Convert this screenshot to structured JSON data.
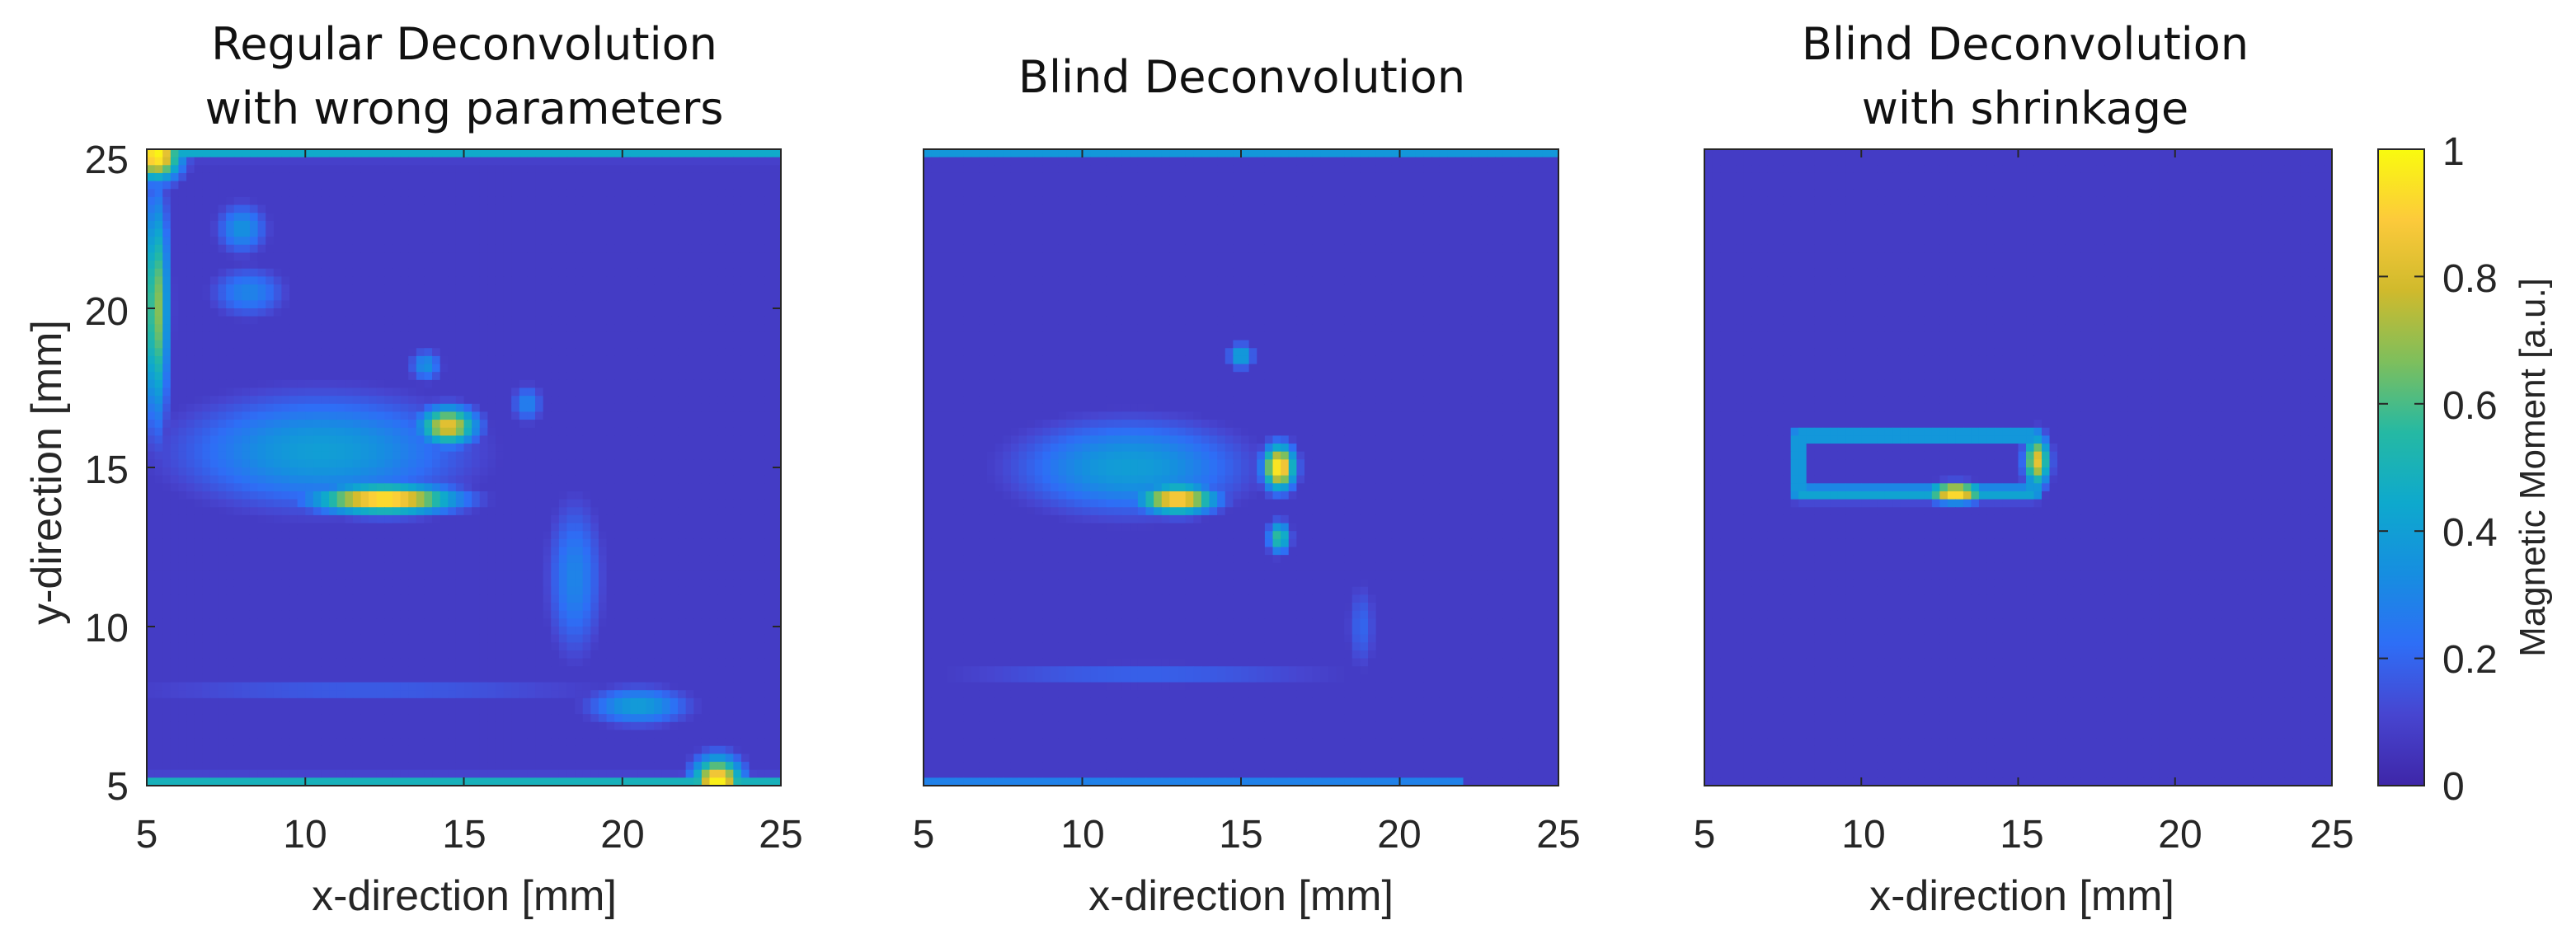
{
  "chart_data": [
    {
      "type": "heatmap",
      "title": [
        "Regular Deconvolution",
        "with wrong parameters"
      ],
      "xlabel": "x-direction [mm]",
      "ylabel": "y-direction [mm]",
      "xlim": [
        5,
        25
      ],
      "ylim": [
        5,
        25
      ],
      "xticks": [
        "5",
        "10",
        "15",
        "20",
        "25"
      ],
      "yticks": [
        "5",
        "10",
        "15",
        "20",
        "25"
      ],
      "background_value": 0.08,
      "features": [
        {
          "kind": "blob",
          "x": 12.5,
          "y": 14.0,
          "rx": 2.2,
          "ry": 0.45,
          "value": 1.0
        },
        {
          "kind": "blob",
          "x": 14.5,
          "y": 16.3,
          "rx": 0.9,
          "ry": 0.6,
          "value": 0.85
        },
        {
          "kind": "blob",
          "x": 10.5,
          "y": 15.5,
          "rx": 4.5,
          "ry": 1.8,
          "value": 0.4
        },
        {
          "kind": "blob",
          "x": 8.0,
          "y": 22.5,
          "rx": 0.8,
          "ry": 0.8,
          "value": 0.35
        },
        {
          "kind": "blob",
          "x": 8.2,
          "y": 20.5,
          "rx": 1.2,
          "ry": 0.8,
          "value": 0.3
        },
        {
          "kind": "blob",
          "x": 13.8,
          "y": 18.2,
          "rx": 0.5,
          "ry": 0.5,
          "value": 0.35
        },
        {
          "kind": "blob",
          "x": 17.0,
          "y": 17.0,
          "rx": 0.5,
          "ry": 0.6,
          "value": 0.3
        },
        {
          "kind": "blob",
          "x": 18.5,
          "y": 11.5,
          "rx": 0.9,
          "ry": 2.5,
          "value": 0.3
        },
        {
          "kind": "blob",
          "x": 20.5,
          "y": 7.5,
          "rx": 1.6,
          "ry": 0.6,
          "value": 0.4
        },
        {
          "kind": "blob",
          "x": 12.0,
          "y": 8.0,
          "rx": 9.0,
          "ry": 0.3,
          "value": 0.2
        },
        {
          "kind": "blob",
          "x": 5.3,
          "y": 20.0,
          "rx": 0.4,
          "ry": 3.5,
          "value": 0.7
        },
        {
          "kind": "edge",
          "side": "top",
          "from": 5,
          "to": 25,
          "value": 0.55
        },
        {
          "kind": "edge",
          "side": "bottom",
          "from": 5,
          "to": 25,
          "value": 0.6
        },
        {
          "kind": "corner",
          "x": 5.3,
          "y": 24.8,
          "value": 1.0
        },
        {
          "kind": "corner",
          "x": 23.0,
          "y": 5.1,
          "value": 1.0
        }
      ]
    },
    {
      "type": "heatmap",
      "title": [
        "Blind Deconvolution"
      ],
      "xlabel": "x-direction [mm]",
      "ylabel": "",
      "xlim": [
        5,
        25
      ],
      "ylim": [
        5,
        25
      ],
      "xticks": [
        "5",
        "10",
        "15",
        "20",
        "25"
      ],
      "yticks": [],
      "background_value": 0.08,
      "features": [
        {
          "kind": "blob",
          "x": 13.0,
          "y": 14.0,
          "rx": 1.2,
          "ry": 0.45,
          "value": 0.95
        },
        {
          "kind": "blob",
          "x": 16.2,
          "y": 15.0,
          "rx": 0.5,
          "ry": 0.7,
          "value": 1.0
        },
        {
          "kind": "blob",
          "x": 11.5,
          "y": 15.0,
          "rx": 3.6,
          "ry": 1.5,
          "value": 0.4
        },
        {
          "kind": "blob",
          "x": 15.0,
          "y": 18.5,
          "rx": 0.4,
          "ry": 0.4,
          "value": 0.45
        },
        {
          "kind": "blob",
          "x": 16.2,
          "y": 12.8,
          "rx": 0.35,
          "ry": 0.5,
          "value": 0.6
        },
        {
          "kind": "blob",
          "x": 12.0,
          "y": 8.5,
          "rx": 7.0,
          "ry": 0.4,
          "value": 0.2
        },
        {
          "kind": "blob",
          "x": 18.8,
          "y": 10.0,
          "rx": 0.5,
          "ry": 1.5,
          "value": 0.2
        },
        {
          "kind": "edge",
          "side": "top",
          "from": 5,
          "to": 25,
          "value": 0.45
        },
        {
          "kind": "edge",
          "side": "bottom",
          "from": 5,
          "to": 22,
          "value": 0.35
        }
      ]
    },
    {
      "type": "heatmap",
      "title": [
        "Blind Deconvolution",
        "with shrinkage"
      ],
      "xlabel": "x-direction [mm]",
      "ylabel": "",
      "xlim": [
        5,
        25
      ],
      "ylim": [
        5,
        25
      ],
      "xticks": [
        "5",
        "10",
        "15",
        "20",
        "25"
      ],
      "yticks": [],
      "background_value": 0.08,
      "features": [
        {
          "kind": "loop",
          "x1": 8.0,
          "x2": 15.5,
          "y1": 14.2,
          "y2": 16.0,
          "value": 0.45
        },
        {
          "kind": "blob",
          "x": 13.0,
          "y": 14.2,
          "rx": 0.9,
          "ry": 0.3,
          "value": 1.0
        },
        {
          "kind": "blob",
          "x": 15.6,
          "y": 15.2,
          "rx": 0.4,
          "ry": 0.8,
          "value": 0.85
        }
      ]
    }
  ],
  "colorbar": {
    "label": "Magnetic Moment [a.u.]",
    "ticks": [
      "0",
      "0.2",
      "0.4",
      "0.6",
      "0.8",
      "1"
    ],
    "range": [
      0,
      1
    ],
    "colormap": "parula",
    "colors": [
      "#3e26a8",
      "#4745d0",
      "#2e6ef6",
      "#168ee0",
      "#0ea9cd",
      "#25b9a3",
      "#7ebf5c",
      "#d0ba2c",
      "#fcca3b",
      "#f9fb0e"
    ]
  }
}
